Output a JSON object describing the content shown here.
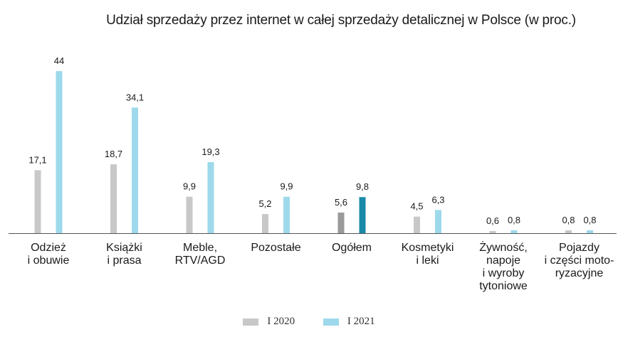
{
  "chart_data": {
    "type": "bar",
    "title": "Udział sprzedaży przez internet w całej sprzedaży detalicznej w Polsce (w proc.)",
    "categories": [
      [
        "Odzież",
        "i obuwie"
      ],
      [
        "Książki",
        "i prasa"
      ],
      [
        "Meble,",
        "RTV/AGD"
      ],
      [
        "Pozostałe"
      ],
      [
        "Ogółem"
      ],
      [
        "Kosmetyki",
        "i leki"
      ],
      [
        "Żywność,",
        "napoje",
        "i wyroby",
        "tytoniowe"
      ],
      [
        "Pojazdy",
        "i części moto-",
        "ryzacyjne"
      ]
    ],
    "series": [
      {
        "name": "I 2020",
        "color": "#c8c8c8",
        "values": [
          17.1,
          18.7,
          9.9,
          5.2,
          5.6,
          4.5,
          0.6,
          0.8
        ],
        "labels": [
          "17,1",
          "18,7",
          "9,9",
          "5,2",
          "5,6",
          "4,5",
          "0,6",
          "0,8"
        ]
      },
      {
        "name": "I 2021",
        "color": "#9dd9ea",
        "values": [
          44,
          34.1,
          19.3,
          9.9,
          9.8,
          6.3,
          0.8,
          0.8
        ],
        "labels": [
          "44",
          "34,1",
          "19,3",
          "9,9",
          "9,8",
          "6,3",
          "0,8",
          "0,8"
        ]
      }
    ],
    "highlight": {
      "category_index": 4,
      "colors": [
        "#9a9a9a",
        "#1a8aa8"
      ]
    },
    "ylim": [
      0,
      44
    ],
    "grid": false,
    "legend": "bottom-center"
  }
}
